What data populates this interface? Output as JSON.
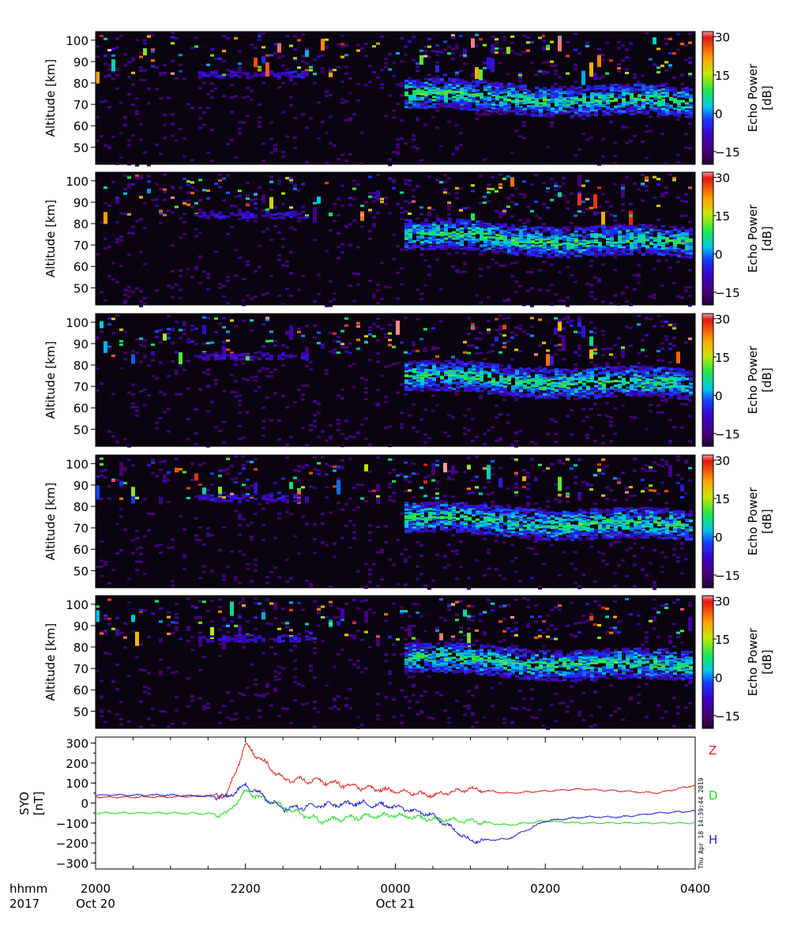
{
  "figure": {
    "station_note": "Thu Apr 18 14:39:44 2019"
  },
  "panels": [
    {
      "id": 1,
      "ylabel": "Altitude [km]",
      "yticks": [
        50,
        60,
        70,
        80,
        90,
        100
      ],
      "ylim": [
        42,
        104
      ],
      "colorbar_label": [
        "Echo Power",
        "[dB]"
      ],
      "cbar_ticks": [
        -15,
        0,
        15,
        30
      ],
      "cbar_range": [
        -20,
        32
      ],
      "seed": 11
    },
    {
      "id": 2,
      "ylabel": "Altitude [km]",
      "yticks": [
        50,
        60,
        70,
        80,
        90,
        100
      ],
      "ylim": [
        42,
        104
      ],
      "colorbar_label": [
        "Echo Power",
        "[dB]"
      ],
      "cbar_ticks": [
        -15,
        0,
        15,
        30
      ],
      "cbar_range": [
        -20,
        32
      ],
      "seed": 23
    },
    {
      "id": 3,
      "ylabel": "Altitude [km]",
      "yticks": [
        50,
        60,
        70,
        80,
        90,
        100
      ],
      "ylim": [
        42,
        104
      ],
      "colorbar_label": [
        "Echo Power",
        "[dB]"
      ],
      "cbar_ticks": [
        -15,
        0,
        15,
        30
      ],
      "cbar_range": [
        -20,
        32
      ],
      "seed": 37
    },
    {
      "id": 4,
      "ylabel": "Altitude [km]",
      "yticks": [
        50,
        60,
        70,
        80,
        90,
        100
      ],
      "ylim": [
        42,
        104
      ],
      "colorbar_label": [
        "Echo Power",
        "[dB]"
      ],
      "cbar_ticks": [
        -15,
        0,
        15,
        30
      ],
      "cbar_range": [
        -20,
        32
      ],
      "seed": 41
    },
    {
      "id": 5,
      "ylabel": "Altitude [km]",
      "yticks": [
        50,
        60,
        70,
        80,
        90,
        100
      ],
      "ylim": [
        42,
        104
      ],
      "colorbar_label": [
        "Echo Power",
        "[dB]"
      ],
      "cbar_ticks": [
        -15,
        0,
        15,
        30
      ],
      "cbar_range": [
        -20,
        32
      ],
      "seed": 53
    }
  ],
  "magnetometer": {
    "ylabel": [
      "SYO",
      "[nT]"
    ],
    "yticks": [
      300,
      200,
      100,
      0,
      -100,
      -200,
      -300
    ],
    "ylim": [
      -330,
      330
    ],
    "series": [
      {
        "name": "Z",
        "color": "#dd2020"
      },
      {
        "name": "D",
        "color": "#22dd22"
      },
      {
        "name": "H",
        "color": "#2020cc"
      }
    ]
  },
  "time_axis": {
    "row1_label": "hhmm",
    "row2_label": "2017",
    "ticks": [
      {
        "hhmm": "2000",
        "date": "Oct 20"
      },
      {
        "hhmm": "2200",
        "date": ""
      },
      {
        "hhmm": "0000",
        "date": "Oct 21"
      },
      {
        "hhmm": "0200",
        "date": ""
      },
      {
        "hhmm": "0400",
        "date": ""
      }
    ]
  },
  "chart_data": [
    {
      "type": "heatmap",
      "title": "",
      "xlabel": "",
      "ylabel": "Altitude [km]",
      "x_range": [
        "2017-10-20 20:00",
        "2017-10-21 04:00"
      ],
      "ylim": [
        42,
        104
      ],
      "colorbar": {
        "label": "Echo Power [dB]",
        "range": [
          -15,
          30
        ]
      },
      "panels": 5
    },
    {
      "type": "line",
      "title": "",
      "ylabel": "SYO [nT]",
      "ylim": [
        -330,
        330
      ],
      "x_range": [
        "2017-10-20 20:00",
        "2017-10-21 04:00"
      ],
      "series": [
        {
          "name": "Z",
          "x": [
            "20:00",
            "21:00",
            "21:45",
            "22:00",
            "22:30",
            "23:00",
            "23:30",
            "00:00",
            "00:30",
            "01:00",
            "01:30",
            "02:00",
            "02:30",
            "03:00",
            "03:30",
            "04:00"
          ],
          "values": [
            30,
            30,
            40,
            290,
            120,
            110,
            80,
            60,
            40,
            70,
            50,
            60,
            70,
            60,
            50,
            90
          ]
        },
        {
          "name": "D",
          "x": [
            "20:00",
            "21:00",
            "21:45",
            "22:00",
            "22:30",
            "23:00",
            "23:30",
            "00:00",
            "00:30",
            "01:00",
            "01:30",
            "02:00",
            "02:30",
            "03:00",
            "03:30",
            "04:00"
          ],
          "values": [
            -50,
            -50,
            -55,
            60,
            -20,
            -90,
            -70,
            -60,
            -80,
            -90,
            -110,
            -90,
            -100,
            -100,
            -100,
            -100
          ]
        },
        {
          "name": "H",
          "x": [
            "20:00",
            "21:00",
            "21:45",
            "22:00",
            "22:30",
            "23:00",
            "23:30",
            "00:00",
            "00:30",
            "01:00",
            "01:30",
            "02:00",
            "02:30",
            "03:00",
            "03:30",
            "04:00"
          ],
          "values": [
            40,
            40,
            30,
            90,
            -30,
            -10,
            0,
            -20,
            -60,
            -190,
            -180,
            -90,
            -70,
            -70,
            -50,
            -40
          ]
        }
      ]
    }
  ]
}
